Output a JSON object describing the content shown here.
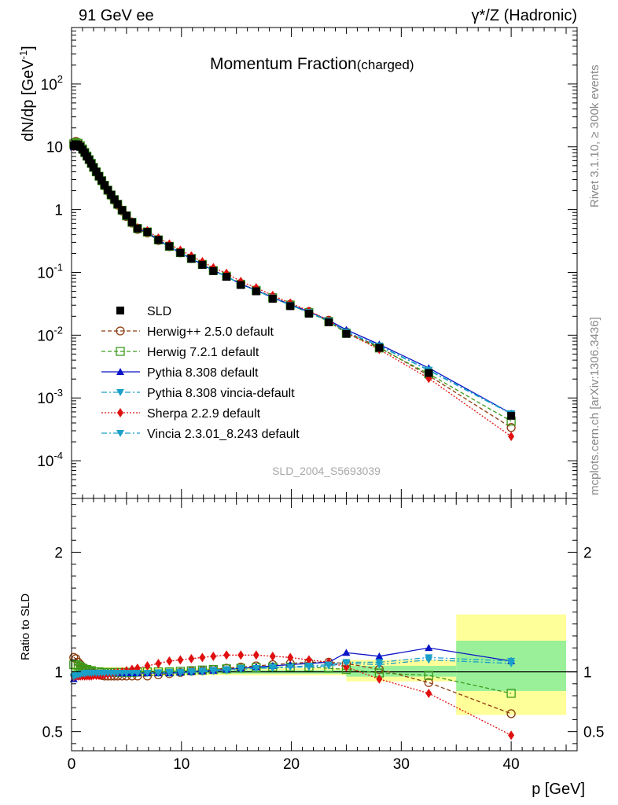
{
  "header": {
    "left": "91 GeV ee",
    "right": "γ*/Z (Hadronic)"
  },
  "side_text": {
    "rivet": "Rivet 3.1.10, ≥ 300k events",
    "mcplots": "mcplots.cern.ch [arXiv:1306.3436]"
  },
  "watermark": "SLD_2004_S5693039",
  "chart_data": {
    "type": "line",
    "title": "Momentum Fraction",
    "title_suffix": "(charged)",
    "xlabel": "p [GeV]",
    "ylabel": "dN/dp [GeV",
    "ylabel_sup": "-1",
    "ylabel_end": "]",
    "ratio_ylabel": "Ratio to SLD",
    "xlim": [
      0,
      46
    ],
    "ylim_log10": [
      -4.6,
      2.9
    ],
    "ratio_ylim": [
      0.34,
      2.45
    ],
    "x_ticks": [
      "0",
      "10",
      "20",
      "30",
      "40"
    ],
    "main_y_ticks": [
      {
        "base": "10",
        "exp": "-4"
      },
      {
        "base": "10",
        "exp": "-3"
      },
      {
        "base": "10",
        "exp": "-2"
      },
      {
        "base": "10",
        "exp": "-1"
      },
      {
        "base": "1",
        "exp": ""
      },
      {
        "base": "10",
        "exp": ""
      },
      {
        "base": "10",
        "exp": "2"
      }
    ],
    "ratio_y_ticks": [
      "0.5",
      "1",
      "2"
    ],
    "x": [
      0.2,
      0.4,
      0.6,
      0.8,
      1.0,
      1.2,
      1.4,
      1.6,
      1.8,
      2.0,
      2.25,
      2.5,
      2.75,
      3.0,
      3.3,
      3.6,
      3.9,
      4.2,
      4.6,
      5.0,
      5.5,
      6.0,
      6.9,
      7.9,
      8.9,
      9.9,
      10.9,
      11.9,
      12.9,
      14.1,
      15.4,
      16.8,
      18.3,
      19.9,
      21.6,
      23.4,
      25.0,
      28.0,
      32.5,
      40.0
    ],
    "sld": {
      "name": "SLD",
      "values": [
        10.5,
        11.0,
        10.8,
        10.0,
        9.0,
        8.0,
        7.0,
        6.2,
        5.4,
        4.7,
        4.0,
        3.4,
        2.9,
        2.45,
        2.05,
        1.72,
        1.45,
        1.22,
        0.98,
        0.8,
        0.63,
        0.5,
        0.44,
        0.33,
        0.26,
        0.205,
        0.165,
        0.132,
        0.105,
        0.085,
        0.063,
        0.05,
        0.038,
        0.029,
        0.022,
        0.016,
        0.0105,
        0.0063,
        0.0025,
        0.00052
      ],
      "band_x": [
        [
          0,
          5
        ],
        [
          5,
          25
        ],
        [
          25,
          35
        ],
        [
          35,
          45
        ]
      ],
      "band_yellow": [
        [
          0.96,
          1.04
        ],
        [
          0.97,
          1.03
        ],
        [
          0.92,
          1.1
        ],
        [
          0.64,
          1.48
        ]
      ],
      "band_green": [
        [
          0.98,
          1.02
        ],
        [
          0.985,
          1.015
        ],
        [
          0.96,
          1.05
        ],
        [
          0.84,
          1.26
        ]
      ]
    },
    "series": [
      {
        "name": "Herwig++ 2.5.0 default",
        "color": "#8b3a0e",
        "marker": "circle-open",
        "dash": "5,3",
        "ratio": [
          1.12,
          1.11,
          1.08,
          1.06,
          1.04,
          1.03,
          1.02,
          1.01,
          1.0,
          0.99,
          0.98,
          0.975,
          0.97,
          0.965,
          0.965,
          0.965,
          0.965,
          0.965,
          0.965,
          0.965,
          0.965,
          0.965,
          0.965,
          0.975,
          0.985,
          0.995,
          1.005,
          1.01,
          1.02,
          1.03,
          1.04,
          1.05,
          1.06,
          1.07,
          1.08,
          1.08,
          1.07,
          1.02,
          0.91,
          0.65
        ]
      },
      {
        "name": "Herwig 7.2.1 default",
        "color": "#3a9a1a",
        "marker": "square-open",
        "dash": "5,3",
        "ratio": [
          1.06,
          1.06,
          1.05,
          1.04,
          1.03,
          1.02,
          1.02,
          1.01,
          1.01,
          1.0,
          1.0,
          1.0,
          0.995,
          0.995,
          0.995,
          0.995,
          0.995,
          0.995,
          0.995,
          0.995,
          0.995,
          1.0,
          1.0,
          1.0,
          1.0,
          1.005,
          1.01,
          1.015,
          1.02,
          1.025,
          1.03,
          1.035,
          1.04,
          1.04,
          1.04,
          1.03,
          1.02,
          0.99,
          0.97,
          0.82
        ]
      },
      {
        "name": "Pythia 8.308 default",
        "color": "#0a14c8",
        "marker": "triangle-up",
        "dash": "",
        "ratio": [
          0.94,
          0.96,
          0.97,
          0.975,
          0.98,
          0.985,
          0.99,
          0.99,
          0.99,
          0.99,
          0.99,
          0.99,
          0.99,
          0.99,
          0.99,
          0.99,
          0.99,
          0.99,
          0.99,
          0.99,
          0.99,
          0.99,
          0.99,
          0.99,
          0.99,
          0.995,
          1.0,
          1.005,
          1.01,
          1.02,
          1.03,
          1.04,
          1.05,
          1.06,
          1.07,
          1.08,
          1.16,
          1.13,
          1.2,
          1.09
        ]
      },
      {
        "name": "Pythia 8.308 vincia-default",
        "color": "#1aa0c8",
        "marker": "triangle-down",
        "dash": "7,3,2,3",
        "ratio": [
          0.95,
          0.96,
          0.97,
          0.975,
          0.98,
          0.985,
          0.99,
          0.99,
          0.99,
          0.99,
          0.99,
          0.99,
          0.99,
          0.99,
          0.99,
          0.99,
          0.99,
          0.99,
          0.99,
          0.99,
          0.99,
          0.99,
          0.99,
          0.99,
          0.99,
          0.99,
          0.995,
          1.0,
          1.005,
          1.01,
          1.02,
          1.03,
          1.03,
          1.04,
          1.04,
          1.05,
          1.07,
          1.06,
          1.1,
          1.07
        ]
      },
      {
        "name": "Sherpa 2.2.9 default",
        "color": "#e01010",
        "marker": "diamond",
        "dash": "2,2",
        "ratio": [
          0.96,
          0.965,
          0.965,
          0.965,
          0.965,
          0.965,
          0.965,
          0.965,
          0.965,
          0.97,
          0.97,
          0.97,
          0.97,
          0.975,
          0.98,
          0.985,
          0.99,
          0.995,
          1.0,
          1.01,
          1.02,
          1.03,
          1.05,
          1.07,
          1.09,
          1.1,
          1.11,
          1.12,
          1.13,
          1.14,
          1.14,
          1.14,
          1.13,
          1.12,
          1.1,
          1.08,
          1.04,
          0.94,
          0.82,
          0.47
        ]
      },
      {
        "name": "Vincia 2.3.01_8.243 default",
        "color": "#1aa0c8",
        "marker": "triangle-down",
        "dash": "7,3,2,3",
        "ratio": [
          0.96,
          0.97,
          0.975,
          0.98,
          0.985,
          0.985,
          0.99,
          0.99,
          0.99,
          0.99,
          0.99,
          0.99,
          0.99,
          0.99,
          0.99,
          0.99,
          0.99,
          0.99,
          0.99,
          0.99,
          0.99,
          0.99,
          0.99,
          0.995,
          1.0,
          1.0,
          1.005,
          1.01,
          1.015,
          1.02,
          1.03,
          1.03,
          1.04,
          1.04,
          1.05,
          1.06,
          1.08,
          1.08,
          1.12,
          1.09
        ]
      }
    ]
  }
}
